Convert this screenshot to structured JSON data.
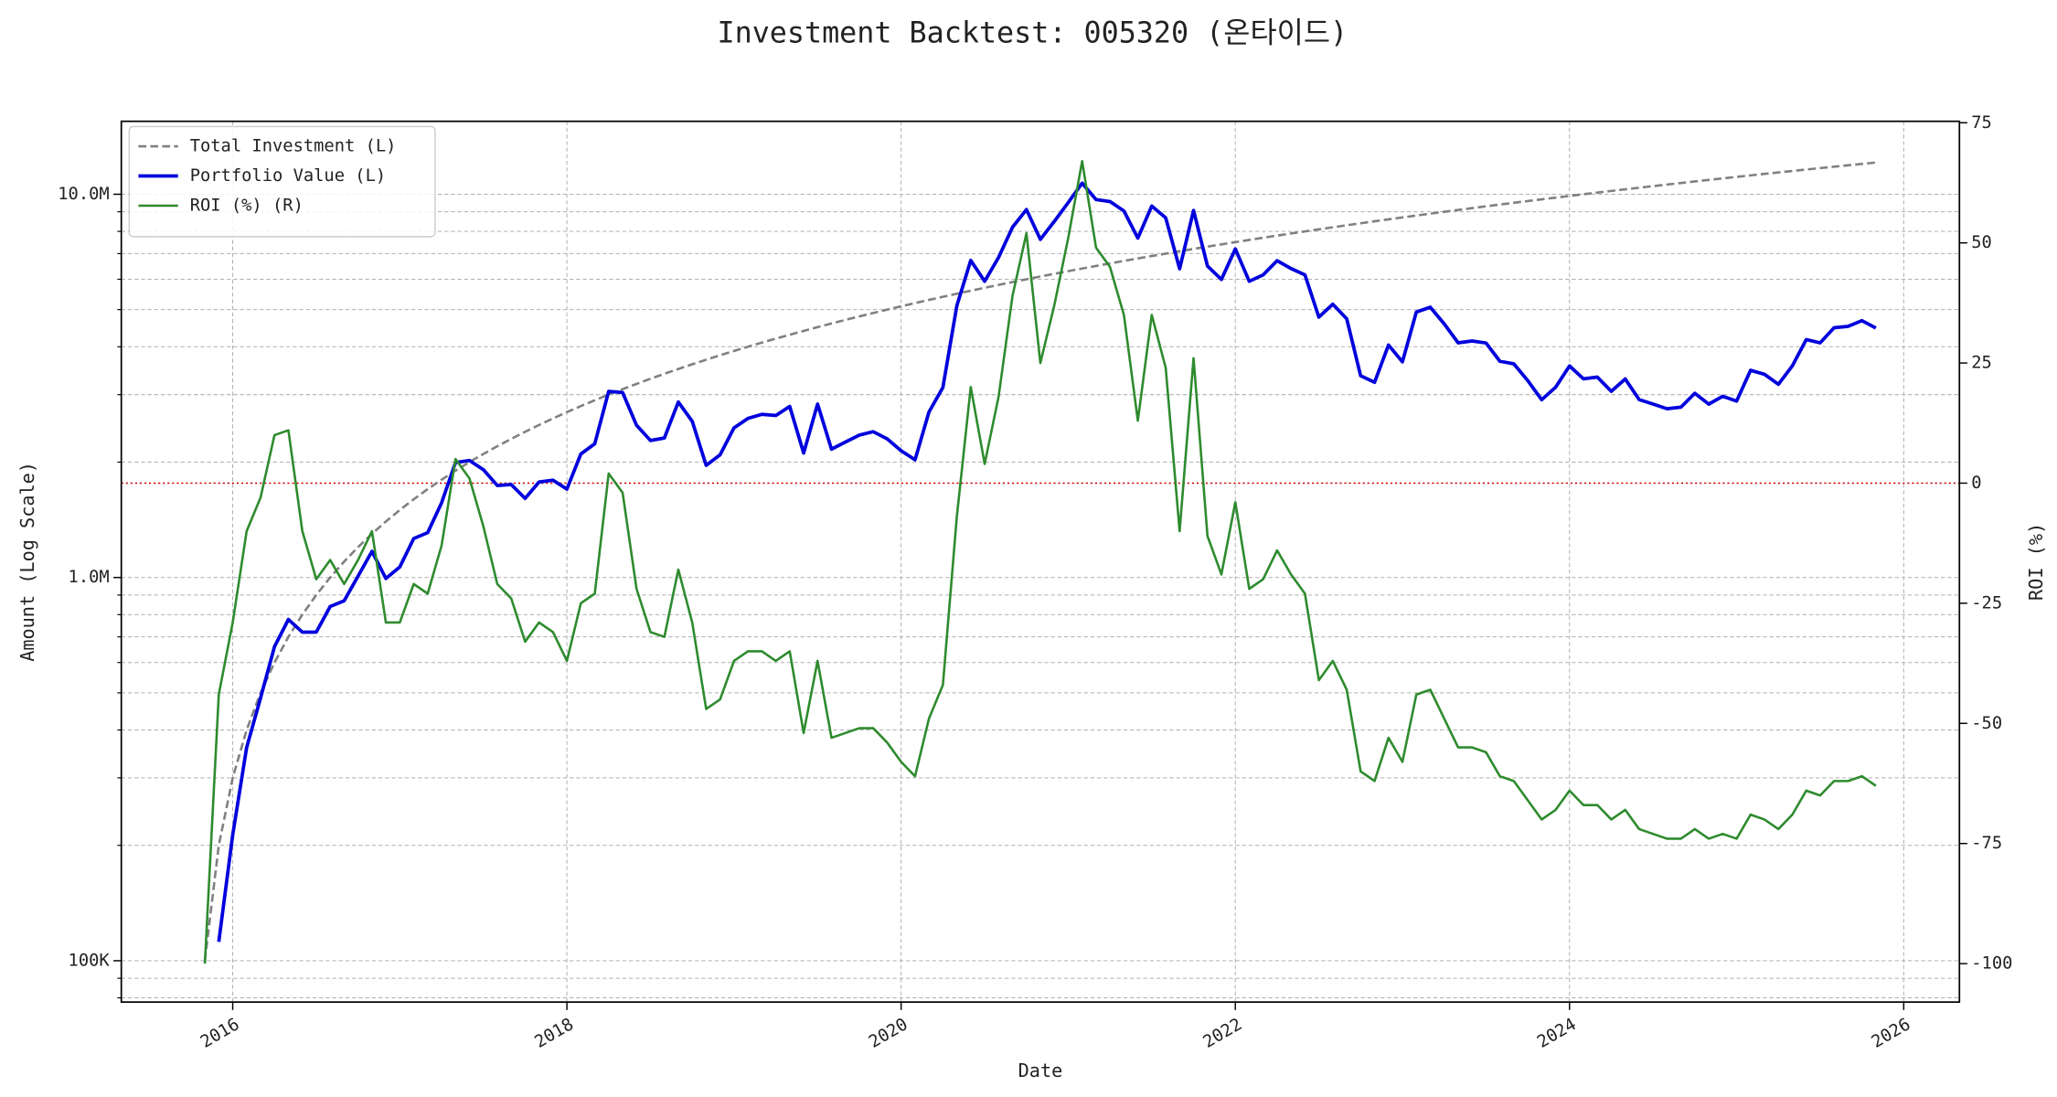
{
  "chart_data": {
    "type": "line",
    "title": "Investment Backtest: 005320 (온타이드)",
    "xlabel": "Date",
    "ylabel": "Amount (Log Scale)",
    "y2label": "ROI (%)",
    "ylabel_color": "#0000cc",
    "y2label_color": "#228b22",
    "log_y": true,
    "grid": true,
    "legend": "upper left",
    "xlim": [
      "2015-05",
      "2026-05"
    ],
    "xticks": [
      {
        "value": "2016-01",
        "label": "2016"
      },
      {
        "value": "2018-01",
        "label": "2018"
      },
      {
        "value": "2020-01",
        "label": "2020"
      },
      {
        "value": "2022-01",
        "label": "2022"
      },
      {
        "value": "2024-01",
        "label": "2024"
      },
      {
        "value": "2026-01",
        "label": "2026"
      }
    ],
    "ylim": [
      78000,
      15500000
    ],
    "yticks": [
      {
        "value": 100000,
        "label": "100K"
      },
      {
        "value": 1000000,
        "label": "1.0M"
      },
      {
        "value": 10000000,
        "label": "10.0M"
      }
    ],
    "yminor": [
      80000,
      90000,
      200000,
      300000,
      400000,
      500000,
      600000,
      700000,
      800000,
      900000,
      2000000,
      3000000,
      4000000,
      5000000,
      6000000,
      7000000,
      8000000,
      9000000
    ],
    "y2lim": [
      -108,
      75.3
    ],
    "y2ticks": [
      -100,
      -75,
      -50,
      -25,
      0,
      25,
      50,
      75
    ],
    "hlines": [
      {
        "axis": "y2",
        "value": 0,
        "color": "#cc0000"
      }
    ],
    "x": [
      "2015-11",
      "2015-12",
      "2016-01",
      "2016-02",
      "2016-03",
      "2016-04",
      "2016-05",
      "2016-06",
      "2016-07",
      "2016-08",
      "2016-09",
      "2016-10",
      "2016-11",
      "2016-12",
      "2017-01",
      "2017-02",
      "2017-03",
      "2017-04",
      "2017-05",
      "2017-06",
      "2017-07",
      "2017-08",
      "2017-09",
      "2017-10",
      "2017-11",
      "2017-12",
      "2018-01",
      "2018-02",
      "2018-03",
      "2018-04",
      "2018-05",
      "2018-06",
      "2018-07",
      "2018-08",
      "2018-09",
      "2018-10",
      "2018-11",
      "2018-12",
      "2019-01",
      "2019-02",
      "2019-03",
      "2019-04",
      "2019-05",
      "2019-06",
      "2019-07",
      "2019-08",
      "2019-09",
      "2019-10",
      "2019-11",
      "2019-12",
      "2020-01",
      "2020-02",
      "2020-03",
      "2020-04",
      "2020-05",
      "2020-06",
      "2020-07",
      "2020-08",
      "2020-09",
      "2020-10",
      "2020-11",
      "2020-12",
      "2021-01",
      "2021-02",
      "2021-03",
      "2021-04",
      "2021-05",
      "2021-06",
      "2021-07",
      "2021-08",
      "2021-09",
      "2021-10",
      "2021-11",
      "2021-12",
      "2022-01",
      "2022-02",
      "2022-03",
      "2022-04",
      "2022-05",
      "2022-06",
      "2022-07",
      "2022-08",
      "2022-09",
      "2022-10",
      "2022-11",
      "2022-12",
      "2023-01",
      "2023-02",
      "2023-03",
      "2023-04",
      "2023-05",
      "2023-06",
      "2023-07",
      "2023-08",
      "2023-09",
      "2023-10",
      "2023-11",
      "2023-12",
      "2024-01",
      "2024-02",
      "2024-03",
      "2024-04",
      "2024-05",
      "2024-06",
      "2024-07",
      "2024-08",
      "2024-09",
      "2024-10",
      "2024-11",
      "2024-12",
      "2025-01",
      "2025-02",
      "2025-03",
      "2025-04",
      "2025-05",
      "2025-06",
      "2025-07",
      "2025-08",
      "2025-09",
      "2025-10",
      "2025-11"
    ],
    "series": [
      {
        "name": "Total Investment (L)",
        "color": "#808080",
        "style": "dashed",
        "axis": "y",
        "values": [
          100000,
          200000,
          300000,
          400000,
          500000,
          600000,
          700000,
          800000,
          900000,
          1000000,
          1100000,
          1200000,
          1300000,
          1400000,
          1500000,
          1600000,
          1700000,
          1800000,
          1900000,
          2000000,
          2100000,
          2200000,
          2300000,
          2400000,
          2500000,
          2600000,
          2700000,
          2800000,
          2900000,
          3000000,
          3100000,
          3200000,
          3300000,
          3400000,
          3500000,
          3600000,
          3700000,
          3800000,
          3900000,
          4000000,
          4100000,
          4200000,
          4300000,
          4400000,
          4500000,
          4600000,
          4700000,
          4800000,
          4900000,
          5000000,
          5100000,
          5200000,
          5300000,
          5400000,
          5500000,
          5600000,
          5700000,
          5800000,
          5900000,
          6000000,
          6100000,
          6200000,
          6300000,
          6400000,
          6500000,
          6600000,
          6700000,
          6800000,
          6900000,
          7000000,
          7100000,
          7200000,
          7300000,
          7400000,
          7500000,
          7600000,
          7700000,
          7800000,
          7900000,
          8000000,
          8100000,
          8200000,
          8300000,
          8400000,
          8500000,
          8600000,
          8700000,
          8800000,
          8900000,
          9000000,
          9100000,
          9200000,
          9300000,
          9400000,
          9500000,
          9600000,
          9700000,
          9800000,
          9900000,
          10000000,
          10100000,
          10200000,
          10300000,
          10400000,
          10500000,
          10600000,
          10700000,
          10800000,
          10900000,
          11000000,
          11100000,
          11200000,
          11300000,
          11400000,
          11500000,
          11600000,
          11700000,
          11800000,
          11900000,
          12000000,
          12100000
        ]
      },
      {
        "name": "Portfolio Value (L)",
        "color": "#0000dd",
        "style": "solid",
        "width": 2.6,
        "axis": "y",
        "values": [
          null,
          112000,
          213000,
          360000,
          485000,
          660000,
          777000,
          720000,
          720000,
          840000,
          869000,
          1008000,
          1170000,
          994000,
          1065000,
          1264000,
          1309000,
          1566000,
          1995000,
          2020000,
          1911000,
          1738000,
          1748000,
          1608000,
          1775000,
          1794000,
          1701000,
          2100000,
          2233000,
          3060000,
          3038000,
          2496000,
          2277000,
          2312000,
          2870000,
          2556000,
          1961000,
          2090000,
          2457000,
          2600000,
          2665000,
          2646000,
          2795000,
          2112000,
          2835000,
          2162000,
          2256000,
          2352000,
          2401000,
          2300000,
          2142000,
          2028000,
          2703000,
          3132000,
          5115000,
          6720000,
          5928000,
          6844000,
          8201000,
          9120000,
          7625000,
          8494000,
          9513000,
          10688000,
          9685000,
          9570000,
          9045000,
          7684000,
          9315000,
          8680000,
          6390000,
          9072000,
          6497000,
          5994000,
          7200000,
          5928000,
          6160000,
          6708000,
          6399000,
          6160000,
          4779000,
          5166000,
          4731000,
          3360000,
          3230000,
          4042000,
          3654000,
          4928000,
          5073000,
          4590000,
          4095000,
          4140000,
          4092000,
          3666000,
          3610000,
          3264000,
          2910000,
          3136000,
          3564000,
          3300000,
          3333000,
          3060000,
          3296000,
          2912000,
          2835000,
          2756000,
          2782000,
          3024000,
          2834000,
          2970000,
          2886000,
          3472000,
          3390000,
          3192000,
          3565000,
          4176000,
          4095000,
          4484000,
          4522000,
          4680000,
          4477000
        ]
      },
      {
        "name": "ROI (%) (R)",
        "color": "#2e8b2e",
        "style": "solid",
        "axis": "y2",
        "values": [
          -100,
          -44,
          -29,
          -10,
          -3,
          10,
          11,
          -10,
          -20,
          -16,
          -21,
          -16,
          -10,
          -29,
          -29,
          -21,
          -23,
          -13,
          5,
          1,
          -9,
          -21,
          -24,
          -33,
          -29,
          -31,
          -37,
          -25,
          -23,
          2,
          -2,
          -22,
          -31,
          -32,
          -18,
          -29,
          -47,
          -45,
          -37,
          -35,
          -35,
          -37,
          -35,
          -52,
          -37,
          -53,
          -52,
          -51,
          -51,
          -54,
          -58,
          -61,
          -49,
          -42,
          -7,
          20,
          4,
          18,
          39,
          52,
          25,
          37,
          51,
          67,
          49,
          45,
          35,
          13,
          35,
          24,
          -10,
          26,
          -11,
          -19,
          -4,
          -22,
          -20,
          -14,
          -19,
          -23,
          -41,
          -37,
          -43,
          -60,
          -62,
          -53,
          -58,
          -44,
          -43,
          -49,
          -55,
          -55,
          -56,
          -61,
          -62,
          -66,
          -70,
          -68,
          -64,
          -67,
          -67,
          -70,
          -68,
          -72,
          -73,
          -74,
          -74,
          -72,
          -74,
          -73,
          -74,
          -69,
          -70,
          -72,
          -69,
          -64,
          -65,
          -62,
          -62,
          -61,
          -63
        ]
      }
    ]
  }
}
